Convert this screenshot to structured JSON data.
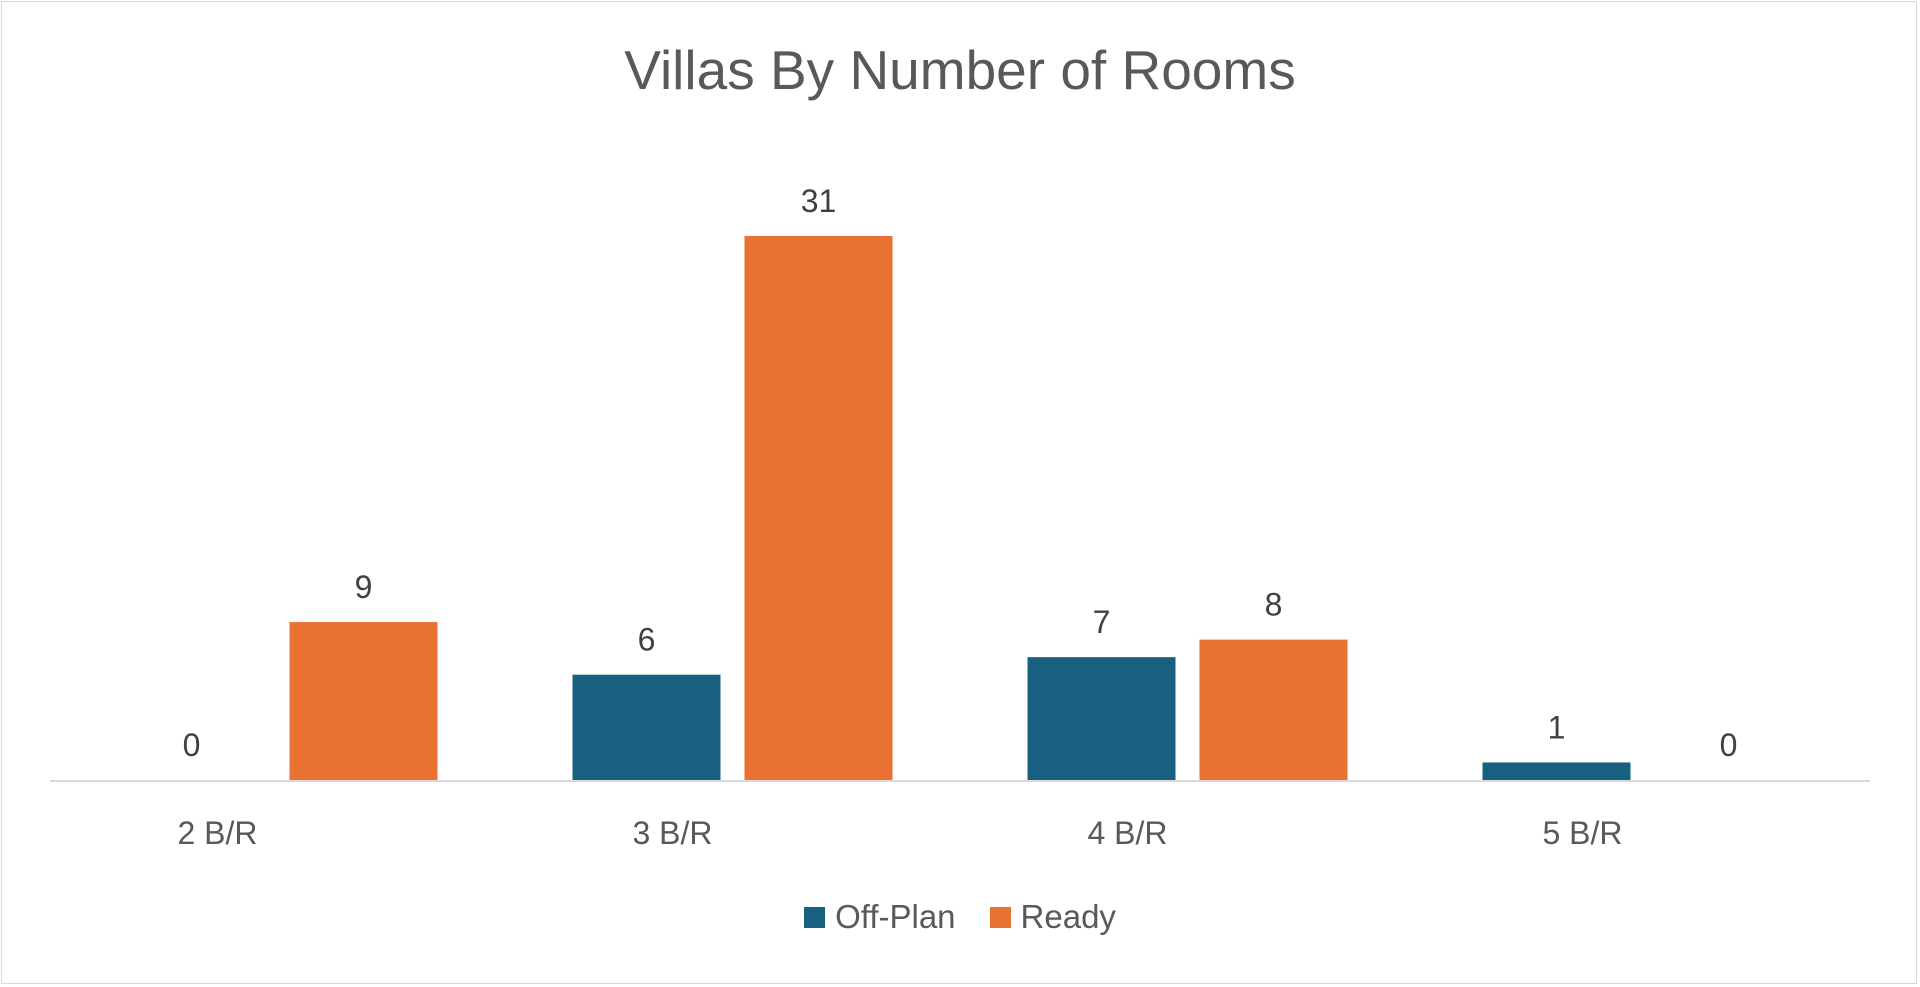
{
  "chart_data": {
    "type": "bar",
    "title": "Villas By Number of Rooms",
    "categories": [
      "2 B/R",
      "3 B/R",
      "4 B/R",
      "5 B/R"
    ],
    "series": [
      {
        "name": "Off-Plan",
        "values": [
          0,
          6,
          7,
          1
        ],
        "color": "#17607f"
      },
      {
        "name": "Ready",
        "values": [
          9,
          31,
          8,
          0
        ],
        "color": "#e97132"
      }
    ],
    "ylim": [
      0,
      31
    ],
    "grid": false,
    "data_labels": true,
    "legend_position": "bottom"
  }
}
